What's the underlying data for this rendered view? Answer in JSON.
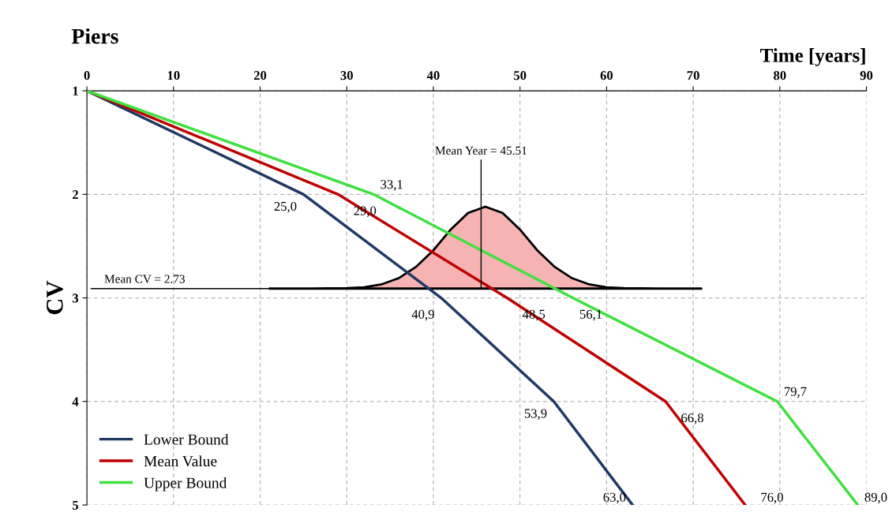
{
  "chart_data": {
    "type": "line",
    "title": "Piers",
    "xlabel": "Time [years]",
    "ylabel": "CV",
    "xlim": [
      0,
      90
    ],
    "xticks": [
      0,
      10,
      20,
      30,
      40,
      50,
      60,
      70,
      80,
      90
    ],
    "ylim": [
      5,
      1
    ],
    "yticks": [
      1,
      2,
      3,
      4,
      5
    ],
    "grid": true,
    "legend": "bottom left",
    "series": [
      {
        "name": "Lower Bound",
        "color": "#1f3864",
        "x": [
          0,
          25,
          40.9,
          53.9,
          63
        ],
        "values": [
          1,
          2,
          3,
          4,
          5
        ]
      },
      {
        "name": "Mean Value",
        "color": "#c00000",
        "x": [
          0,
          29,
          48.5,
          66.8,
          76
        ],
        "values": [
          1,
          2,
          3,
          4,
          5
        ]
      },
      {
        "name": "Upper Bound",
        "color": "#3fe03f",
        "x": [
          0,
          33.1,
          56.1,
          79.7,
          89
        ],
        "values": [
          1,
          2,
          3,
          4,
          5
        ]
      },
      {
        "type": "area",
        "color": "#f7b3b3",
        "x": [
          21,
          26,
          30,
          32,
          34,
          36,
          38,
          40,
          42,
          44,
          46,
          48,
          50,
          52,
          54,
          56,
          58,
          60,
          62,
          66,
          71
        ],
        "values": [
          2.91,
          2.91,
          2.906,
          2.897,
          2.87,
          2.81,
          2.7,
          2.54,
          2.34,
          2.18,
          2.12,
          2.18,
          2.34,
          2.54,
          2.7,
          2.81,
          2.87,
          2.897,
          2.906,
          2.91,
          2.91
        ]
      }
    ],
    "annotations": [
      {
        "text": "25,0",
        "x": 25,
        "y": 2
      },
      {
        "text": "40,9",
        "x": 40.9,
        "y": 3
      },
      {
        "text": "53,9",
        "x": 53.9,
        "y": 4
      },
      {
        "text": "63,0",
        "x": 63,
        "y": 5
      },
      {
        "text": "29,0",
        "x": 29,
        "y": 2
      },
      {
        "text": "48,5",
        "x": 48.5,
        "y": 3
      },
      {
        "text": "66,8",
        "x": 66.8,
        "y": 4
      },
      {
        "text": "76,0",
        "x": 76,
        "y": 5
      },
      {
        "text": "Mean CV = 2.73",
        "x": 2,
        "y": 2.91
      },
      {
        "text": "33,1",
        "x": 33.1,
        "y": 2
      },
      {
        "text": "56,1",
        "x": 56.1,
        "y": 3
      },
      {
        "text": "79,7",
        "x": 79.7,
        "y": 4
      },
      {
        "text": "89,0",
        "x": 89,
        "y": 5
      }
    ],
    "ref_lines": [
      {
        "axis": "x",
        "value": 45.51,
        "label": "Mean Year = 45.51"
      },
      {
        "axis": "y",
        "value": 2.91
      }
    ]
  }
}
